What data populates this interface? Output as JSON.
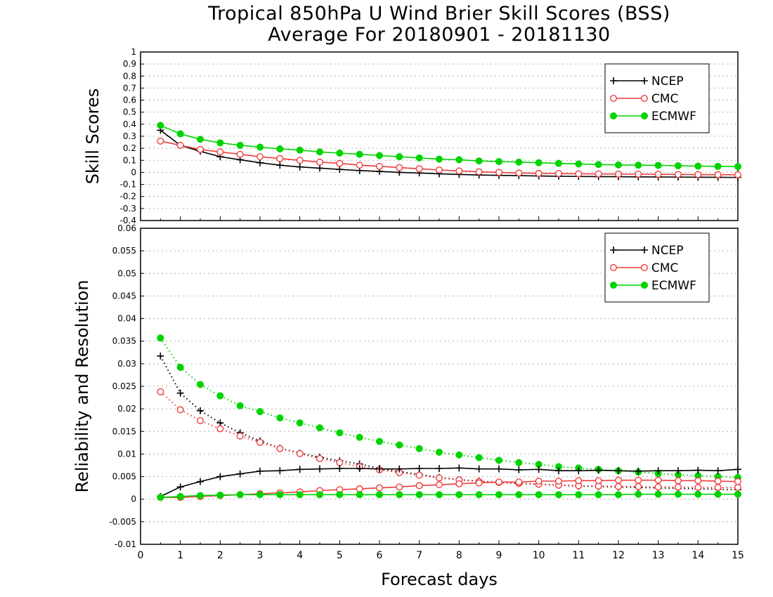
{
  "title": "Tropical 850hPa U Wind Brier Skill Scores (BSS)",
  "subtitle": "Average For 20180901 - 20181130",
  "xlabel": "Forecast days",
  "colors": {
    "NCEP": "#000000",
    "CMC": "#f03c3c",
    "ECMWF": "#00d400"
  },
  "chart_data": [
    {
      "type": "line",
      "ylabel": "Skill Scores",
      "xlim": [
        0,
        15
      ],
      "ylim": [
        -0.4,
        1
      ],
      "yticks": [
        "-0.4",
        "-0.3",
        "-0.2",
        "-0.1",
        "0",
        "0.1",
        "0.2",
        "0.3",
        "0.4",
        "0.5",
        "0.6",
        "0.7",
        "0.8",
        "0.9",
        "1"
      ],
      "xticks": [
        "0",
        "1",
        "2",
        "3",
        "4",
        "5",
        "6",
        "7",
        "8",
        "9",
        "10",
        "11",
        "12",
        "13",
        "14",
        "15"
      ],
      "grid": true,
      "legend": "top-right",
      "x": [
        0.5,
        1,
        1.5,
        2,
        2.5,
        3,
        3.5,
        4,
        4.5,
        5,
        5.5,
        6,
        6.5,
        7,
        7.5,
        8,
        8.5,
        9,
        9.5,
        10,
        10.5,
        11,
        11.5,
        12,
        12.5,
        13,
        13.5,
        14,
        14.5,
        15
      ],
      "series": [
        {
          "name": "NCEP",
          "marker": "plus",
          "values": [
            0.35,
            0.225,
            0.175,
            0.13,
            0.105,
            0.08,
            0.06,
            0.045,
            0.035,
            0.025,
            0.015,
            0.008,
            0.0,
            -0.005,
            -0.012,
            -0.017,
            -0.022,
            -0.025,
            -0.027,
            -0.03,
            -0.032,
            -0.034,
            -0.035,
            -0.036,
            -0.037,
            -0.038,
            -0.039,
            -0.04,
            -0.041,
            -0.042
          ]
        },
        {
          "name": "CMC",
          "marker": "open-circle",
          "values": [
            0.26,
            0.225,
            0.19,
            0.17,
            0.15,
            0.13,
            0.115,
            0.1,
            0.085,
            0.075,
            0.06,
            0.05,
            0.04,
            0.03,
            0.02,
            0.012,
            0.005,
            0.0,
            -0.005,
            -0.008,
            -0.01,
            -0.012,
            -0.013,
            -0.014,
            -0.015,
            -0.016,
            -0.017,
            -0.018,
            -0.019,
            -0.02
          ]
        },
        {
          "name": "ECMWF",
          "marker": "filled-circle",
          "values": [
            0.39,
            0.32,
            0.275,
            0.245,
            0.225,
            0.21,
            0.195,
            0.185,
            0.17,
            0.16,
            0.15,
            0.14,
            0.13,
            0.12,
            0.11,
            0.105,
            0.095,
            0.09,
            0.085,
            0.08,
            0.075,
            0.07,
            0.065,
            0.062,
            0.06,
            0.058,
            0.055,
            0.052,
            0.05,
            0.048
          ]
        }
      ]
    },
    {
      "type": "line",
      "ylabel": "Reliability and Resolution",
      "xlim": [
        0,
        15
      ],
      "ylim": [
        -0.01,
        0.06
      ],
      "yticks": [
        "-0.01",
        "-0.005",
        "0",
        "0.005",
        "0.01",
        "0.015",
        "0.02",
        "0.025",
        "0.03",
        "0.035",
        "0.04",
        "0.045",
        "0.05",
        "0.055",
        "0.06"
      ],
      "xticks": [
        "0",
        "1",
        "2",
        "3",
        "4",
        "5",
        "6",
        "7",
        "8",
        "9",
        "10",
        "11",
        "12",
        "13",
        "14",
        "15"
      ],
      "grid": true,
      "legend": "top-right",
      "x": [
        0.5,
        1,
        1.5,
        2,
        2.5,
        3,
        3.5,
        4,
        4.5,
        5,
        5.5,
        6,
        6.5,
        7,
        7.5,
        8,
        8.5,
        9,
        9.5,
        10,
        10.5,
        11,
        11.5,
        12,
        12.5,
        13,
        13.5,
        14,
        14.5,
        15
      ],
      "series": [
        {
          "name": "NCEP",
          "role": "reliability",
          "style": "dotted",
          "marker": "plus",
          "values": [
            0.0317,
            0.0235,
            0.0196,
            0.0169,
            0.0147,
            0.0129,
            0.0113,
            0.0102,
            0.0093,
            0.0085,
            0.0078,
            0.0068,
            0.0061,
            0.0055,
            0.0048,
            0.0043,
            0.004,
            0.0037,
            0.0035,
            0.0033,
            0.0031,
            0.0029,
            0.0028,
            0.0027,
            0.0026,
            0.0025,
            0.0024,
            0.0023,
            0.0022,
            0.0021
          ]
        },
        {
          "name": "CMC",
          "role": "reliability",
          "style": "dotted",
          "marker": "open-circle",
          "values": [
            0.0238,
            0.0198,
            0.0174,
            0.0156,
            0.014,
            0.0126,
            0.0112,
            0.0101,
            0.009,
            0.0081,
            0.0072,
            0.0065,
            0.0059,
            0.0053,
            0.0047,
            0.0043,
            0.0039,
            0.0037,
            0.0035,
            0.0033,
            0.0031,
            0.003,
            0.0029,
            0.0028,
            0.0028,
            0.0027,
            0.0027,
            0.0026,
            0.0026,
            0.0026
          ]
        },
        {
          "name": "ECMWF",
          "role": "reliability",
          "style": "dotted",
          "marker": "filled-circle",
          "values": [
            0.0357,
            0.0292,
            0.0254,
            0.0229,
            0.0207,
            0.0194,
            0.018,
            0.0169,
            0.0158,
            0.0147,
            0.0137,
            0.0128,
            0.012,
            0.0112,
            0.0104,
            0.0098,
            0.0092,
            0.0086,
            0.0081,
            0.0077,
            0.0072,
            0.0069,
            0.0066,
            0.0063,
            0.006,
            0.0057,
            0.0054,
            0.0052,
            0.005,
            0.0048
          ]
        },
        {
          "name": "NCEP",
          "role": "resolution",
          "style": "solid",
          "marker": "plus",
          "values": [
            0.0006,
            0.0027,
            0.0039,
            0.005,
            0.0056,
            0.0062,
            0.0063,
            0.0066,
            0.0067,
            0.0068,
            0.0068,
            0.0067,
            0.0067,
            0.0068,
            0.0068,
            0.0069,
            0.0067,
            0.0067,
            0.0065,
            0.0066,
            0.0063,
            0.0063,
            0.0064,
            0.0063,
            0.0062,
            0.0063,
            0.0063,
            0.0064,
            0.0063,
            0.0066
          ]
        },
        {
          "name": "CMC",
          "role": "resolution",
          "style": "solid",
          "marker": "open-circle",
          "values": [
            0.0004,
            0.0004,
            0.0006,
            0.0008,
            0.001,
            0.0012,
            0.0014,
            0.0016,
            0.0019,
            0.0021,
            0.0023,
            0.0025,
            0.0027,
            0.003,
            0.0032,
            0.0034,
            0.0036,
            0.0038,
            0.0038,
            0.004,
            0.004,
            0.0041,
            0.0041,
            0.0042,
            0.0042,
            0.0042,
            0.0041,
            0.0041,
            0.004,
            0.0039
          ]
        },
        {
          "name": "ECMWF",
          "role": "resolution",
          "style": "solid",
          "marker": "filled-circle",
          "values": [
            0.0004,
            0.0006,
            0.0008,
            0.0009,
            0.001,
            0.001,
            0.001,
            0.001,
            0.001,
            0.001,
            0.001,
            0.001,
            0.001,
            0.001,
            0.001,
            0.001,
            0.001,
            0.001,
            0.001,
            0.001,
            0.001,
            0.001,
            0.001,
            0.001,
            0.0011,
            0.0011,
            0.0011,
            0.0011,
            0.0011,
            0.0011
          ]
        }
      ]
    }
  ]
}
